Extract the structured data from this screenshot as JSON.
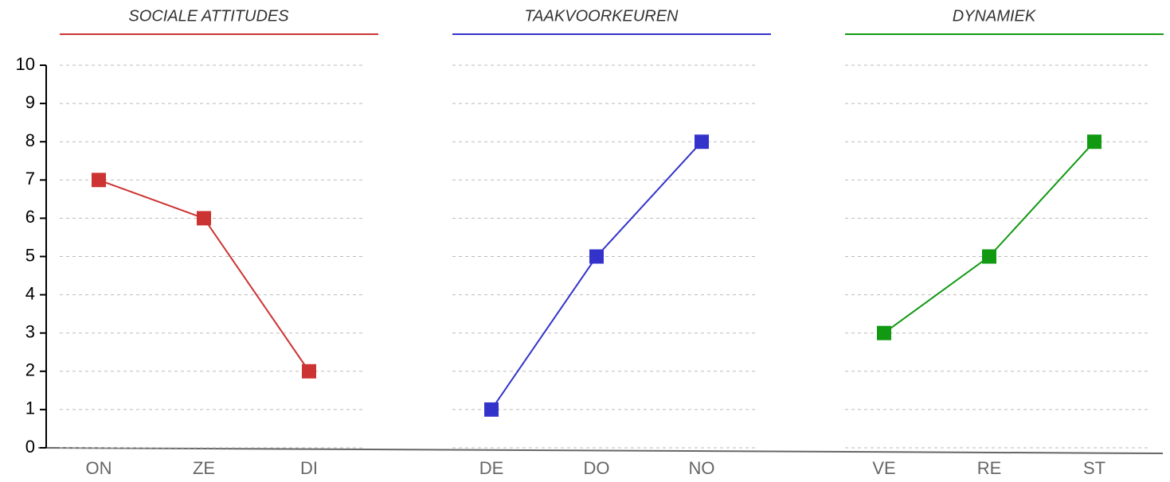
{
  "chart_data": [
    {
      "type": "line",
      "title": "SOCIALE ATTITUDES",
      "categories": [
        "ON",
        "ZE",
        "DI"
      ],
      "values": [
        7,
        6,
        2
      ],
      "color": "#cc3333",
      "ylim": [
        0,
        10
      ],
      "yticks": [
        0,
        1,
        2,
        3,
        4,
        5,
        6,
        7,
        8,
        9,
        10
      ],
      "grid": true
    },
    {
      "type": "line",
      "title": "TAAKVOORKEUREN",
      "categories": [
        "DE",
        "DO",
        "NO"
      ],
      "values": [
        1,
        5,
        8
      ],
      "color": "#3333cc",
      "ylim": [
        0,
        10
      ],
      "yticks": [
        0,
        1,
        2,
        3,
        4,
        5,
        6,
        7,
        8,
        9,
        10
      ],
      "grid": true
    },
    {
      "type": "line",
      "title": "DYNAMIEK",
      "categories": [
        "VE",
        "RE",
        "ST"
      ],
      "values": [
        3,
        5,
        8
      ],
      "color": "#119911",
      "ylim": [
        0,
        10
      ],
      "yticks": [
        0,
        1,
        2,
        3,
        4,
        5,
        6,
        7,
        8,
        9,
        10
      ],
      "grid": true
    }
  ]
}
